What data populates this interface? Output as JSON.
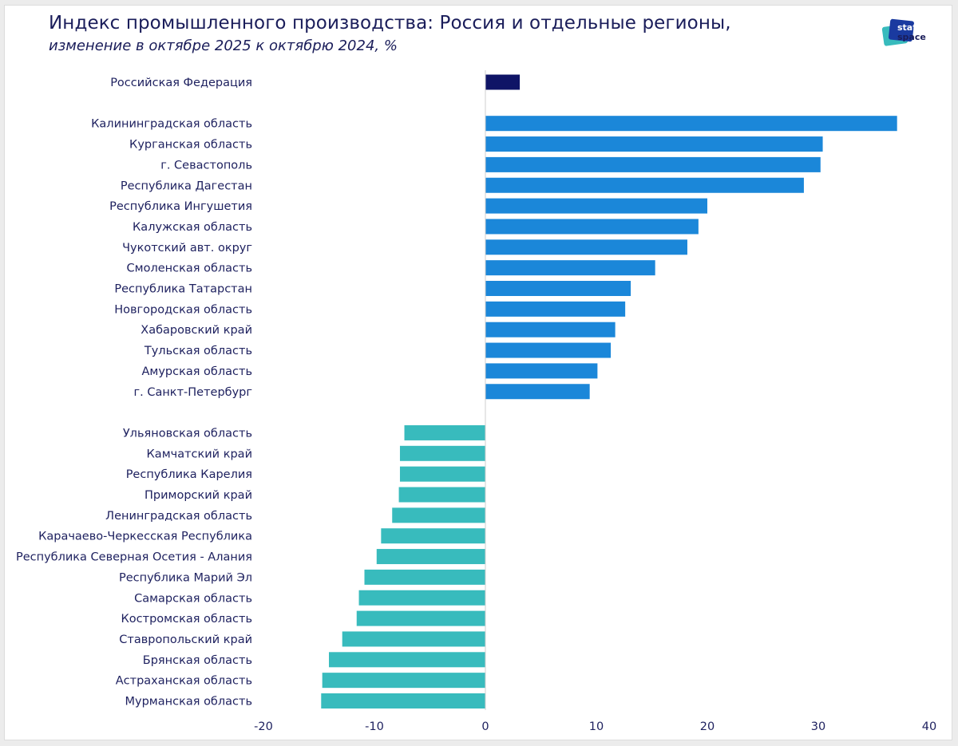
{
  "header": {
    "title": "Индекс промышленного производства: Россия и отдельные регионы,",
    "subtitle": "изменение в октябре 2025 к октябрю 2024, %"
  },
  "logo": {
    "line1": "stat",
    "line2": "space",
    "icon": "statspace-logo"
  },
  "colors": {
    "russia": "#0f1466",
    "positive": "#1b87d9",
    "negative": "#38bbbd",
    "text": "#1f2260",
    "axis": "#cfcfcf"
  },
  "chart_data": {
    "type": "bar",
    "orientation": "horizontal",
    "title": "Индекс промышленного производства: Россия и отдельные регионы,",
    "subtitle": "изменение в октябре 2025 к октябрю 2024, %",
    "xlabel": "",
    "ylabel": "",
    "xlim": [
      -20,
      40
    ],
    "xticks": [
      -20,
      -10,
      0,
      10,
      20,
      30,
      40
    ],
    "grid": false,
    "legend": "none",
    "groups": [
      {
        "name": "russia",
        "categories": [
          "Российская Федерация"
        ],
        "values": [
          3.1
        ]
      },
      {
        "name": "top-growth",
        "categories": [
          "Калининградская область",
          "Курганская область",
          "г. Севастополь",
          "Республика Дагестан",
          "Республика Ингушетия",
          "Калужская область",
          "Чукотский авт. округ",
          "Смоленская область",
          "Республика Татарстан",
          "Новгородская область",
          "Хабаровский край",
          "Тульская область",
          "Амурская область",
          "г. Санкт-Петербург"
        ],
        "values": [
          37.1,
          30.4,
          30.2,
          28.7,
          20.0,
          19.2,
          18.2,
          15.3,
          13.1,
          12.6,
          11.7,
          11.3,
          10.1,
          9.4
        ]
      },
      {
        "name": "top-decline",
        "categories": [
          "Ульяновская область",
          "Камчатский край",
          "Республика Карелия",
          "Приморский край",
          "Ленинградская область",
          "Карачаево-Черкесская Республика",
          "Республика Северная Осетия - Алания",
          "Республика Марий Эл",
          "Самарская область",
          "Костромская область",
          "Ставропольский край",
          "Брянская область",
          "Астраханская область",
          "Мурманская область"
        ],
        "values": [
          -7.3,
          -7.7,
          -7.7,
          -7.8,
          -8.4,
          -9.4,
          -9.8,
          -10.9,
          -11.4,
          -11.6,
          -12.9,
          -14.1,
          -14.7,
          -14.8
        ]
      }
    ]
  }
}
